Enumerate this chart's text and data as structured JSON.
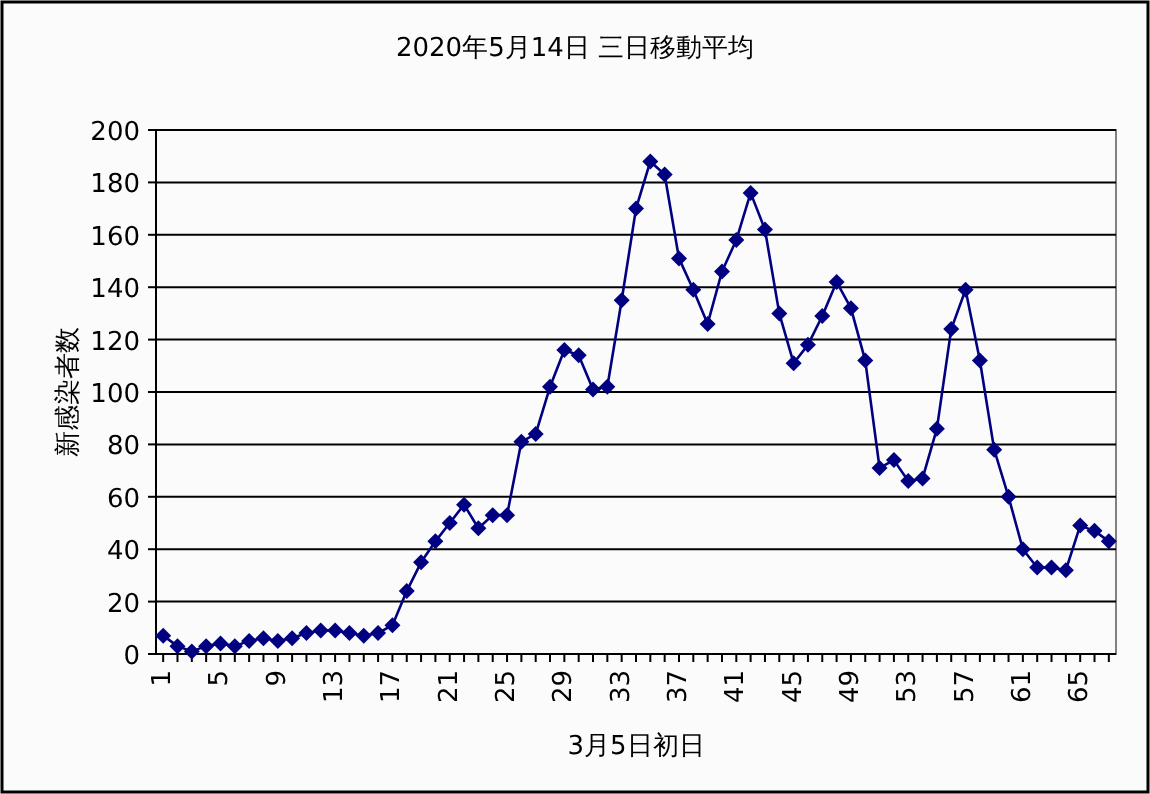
{
  "chart_data": {
    "type": "line",
    "title": "2020年5月14日 三日移動平均",
    "xlabel": "3月5日初日",
    "ylabel": "新感染者数",
    "categories": [
      "1",
      null,
      null,
      null,
      "5",
      null,
      null,
      null,
      "9",
      null,
      null,
      null,
      "13",
      null,
      null,
      null,
      "17",
      null,
      null,
      null,
      "21",
      null,
      null,
      null,
      "25",
      null,
      null,
      null,
      "29",
      null,
      null,
      null,
      "33",
      null,
      null,
      null,
      "37",
      null,
      null,
      null,
      "41",
      null,
      null,
      null,
      "45",
      null,
      null,
      null,
      "49",
      null,
      null,
      null,
      "53",
      null,
      null,
      null,
      "57",
      null,
      null,
      null,
      "61",
      null,
      null,
      null,
      "65",
      null,
      null
    ],
    "series": [
      {
        "color": "#000080",
        "values": [
          7,
          3,
          1,
          3,
          4,
          3,
          5,
          6,
          5,
          6,
          8,
          9,
          9,
          8,
          7,
          8,
          11,
          24,
          35,
          43,
          50,
          57,
          48,
          53,
          53,
          81,
          84,
          102,
          116,
          114,
          101,
          102,
          135,
          170,
          188,
          183,
          151,
          139,
          126,
          146,
          158,
          176,
          162,
          130,
          111,
          118,
          129,
          142,
          132,
          112,
          71,
          74,
          66,
          67,
          86,
          124,
          139,
          112,
          78,
          60,
          40,
          33,
          33,
          32,
          49,
          47,
          43
        ]
      }
    ],
    "ylim": [
      0,
      200
    ],
    "yticks": [
      0,
      20,
      40,
      60,
      80,
      100,
      120,
      140,
      160,
      180,
      200
    ],
    "grid": "y",
    "marker": "diamond",
    "line_style": "solid"
  }
}
